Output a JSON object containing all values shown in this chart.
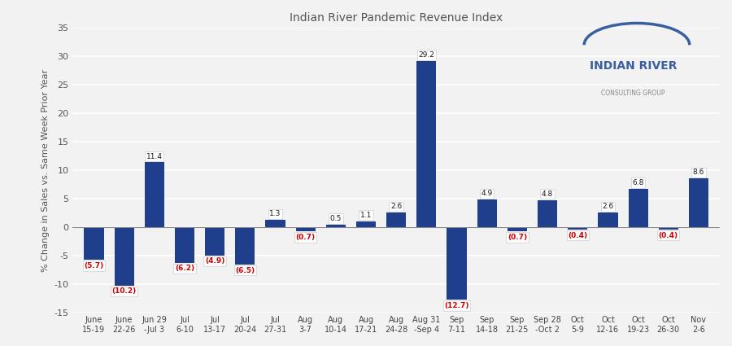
{
  "title": "Indian River Pandemic Revenue Index",
  "ylabel": "% Change in Sales vs. Same Week Prior Year",
  "categories": [
    "June\n15-19",
    "June\n22-26",
    "Jun 29\n-Jul 3",
    "Jul\n6-10",
    "Jul\n13-17",
    "Jul\n20-24",
    "Jul\n27-31",
    "Aug\n3-7",
    "Aug\n10-14",
    "Aug\n17-21",
    "Aug\n24-28",
    "Aug 31\n-Sep 4",
    "Sep\n7-11",
    "Sep\n14-18",
    "Sep\n21-25",
    "Sep 28\n-Oct 2",
    "Oct\n5-9",
    "Oct\n12-16",
    "Oct\n19-23",
    "Oct\n26-30",
    "Nov\n2-6"
  ],
  "values": [
    -5.7,
    -10.2,
    11.4,
    -6.2,
    -4.9,
    -6.5,
    1.3,
    -0.7,
    0.5,
    1.1,
    2.6,
    29.2,
    -12.7,
    4.9,
    -0.7,
    4.8,
    -0.4,
    2.6,
    6.8,
    -0.4,
    8.6
  ],
  "bar_color": "#1f3e8c",
  "ylim": [
    -15,
    35
  ],
  "yticks": [
    -15,
    -10,
    -5,
    0,
    5,
    10,
    15,
    20,
    25,
    30,
    35
  ],
  "title_fontsize": 10,
  "axis_label_fontsize": 8,
  "tick_fontsize": 7,
  "label_text_color_positive": "#1a1a1a",
  "label_text_color_negative": "#cc0000",
  "background_color": "#f2f2f2",
  "logo_main_color": "#3a5fa0",
  "logo_sub_color": "#888888",
  "arc_color": "#3a5fa0"
}
